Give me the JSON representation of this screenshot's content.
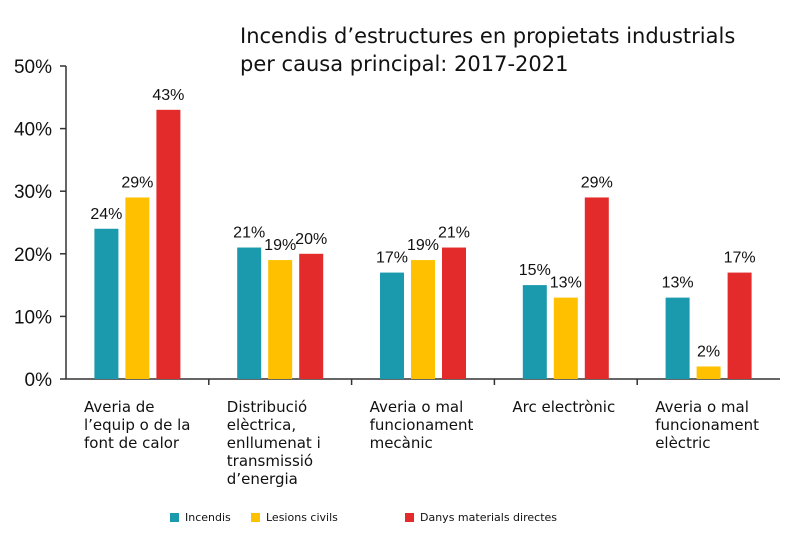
{
  "chart_data": {
    "type": "bar",
    "title": [
      "Incendis d’estructures en propietats industrials",
      "per causa principal: 2017-2021"
    ],
    "categories": [
      [
        "Averia de",
        "l’equip o de la",
        "font de calor"
      ],
      [
        "Distribució",
        "elèctrica,",
        "enllumenat i",
        "transmissió",
        "d’energia"
      ],
      [
        "Averia o mal",
        "funcionament",
        "mecànic"
      ],
      [
        "Arc electrònic"
      ],
      [
        "Averia o mal",
        "funcionament",
        "elèctric"
      ]
    ],
    "series": [
      {
        "name": "Incendis",
        "color": "#1a9aac",
        "values": [
          24,
          21,
          17,
          15,
          13
        ],
        "labels": [
          "24%",
          "21%",
          "17%",
          "15%",
          "13%"
        ]
      },
      {
        "name": "Lesions civils",
        "color": "#ffc000",
        "values": [
          29,
          19,
          19,
          13,
          2
        ],
        "labels": [
          "29%",
          "19%",
          "19%",
          "13%",
          "2%"
        ]
      },
      {
        "name": "Danys materials directes",
        "color": "#e32b2b",
        "values": [
          43,
          20,
          21,
          29,
          17
        ],
        "labels": [
          "43%",
          "20%",
          "21%",
          "29%",
          "17%"
        ]
      }
    ],
    "ylim": [
      0,
      50
    ],
    "yticks": [
      "0%",
      "10%",
      "20%",
      "30%",
      "40%",
      "50%"
    ],
    "grid": false,
    "legend_position": "bottom"
  }
}
